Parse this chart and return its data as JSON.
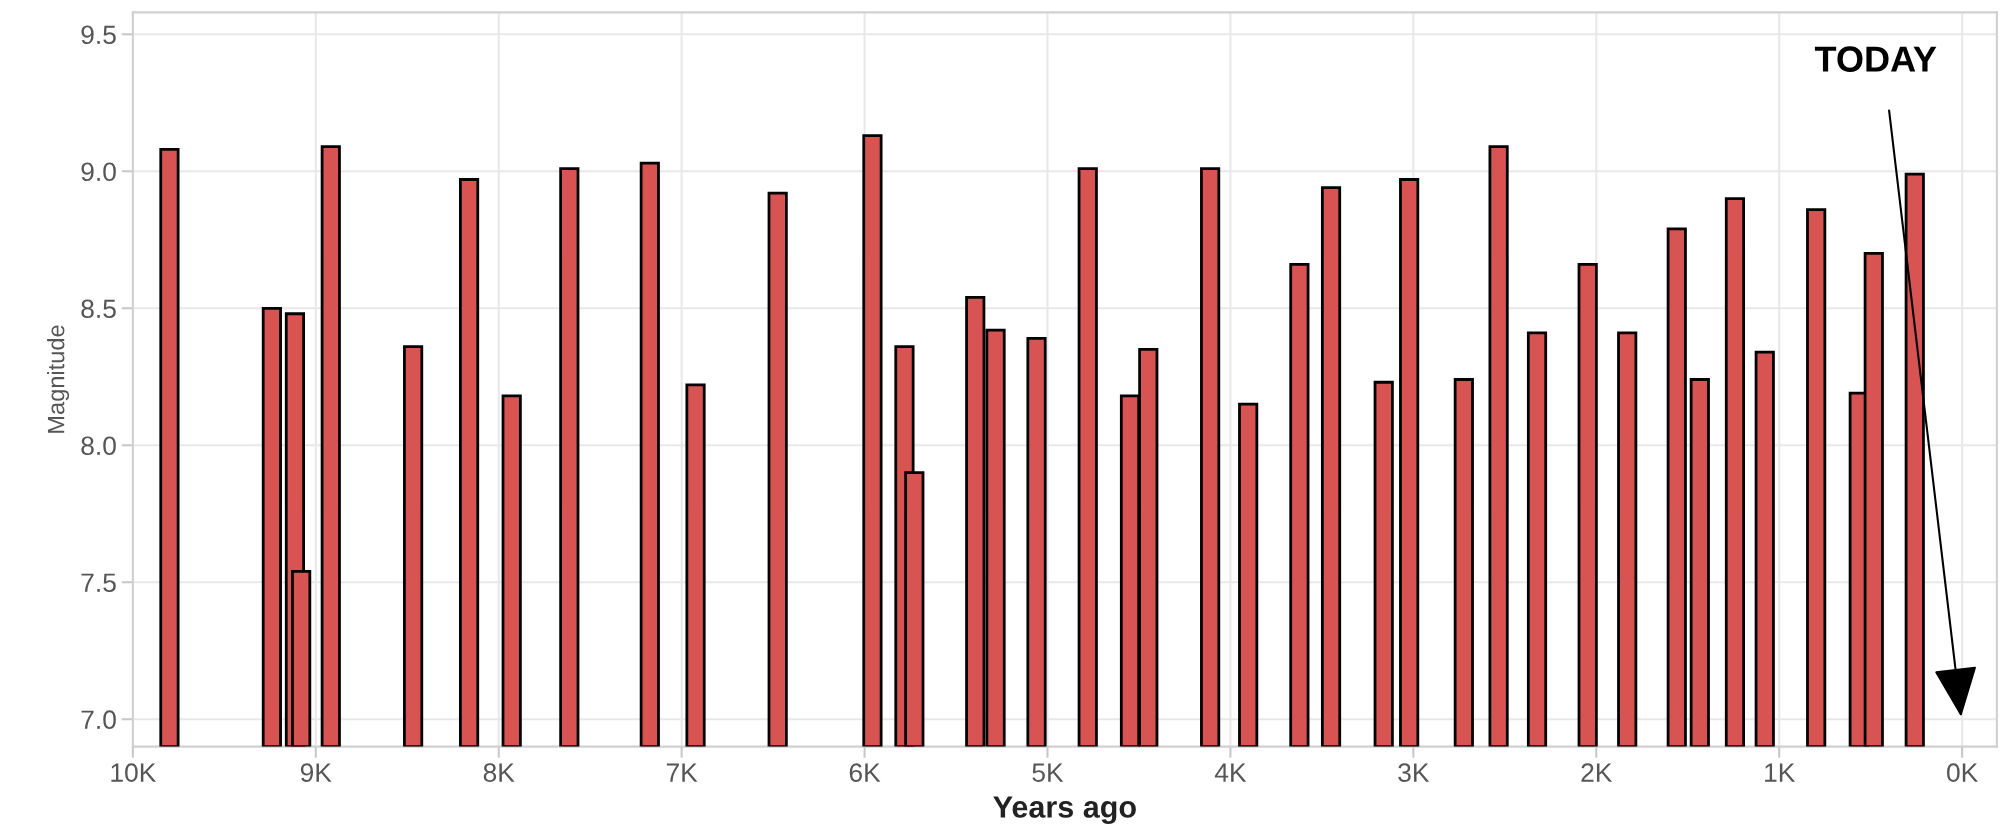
{
  "chart_data": {
    "type": "bar",
    "xlabel": "Years ago",
    "ylabel": "Magnitude",
    "x": [
      9800,
      9240,
      9114,
      9080,
      8918,
      8468,
      8162,
      7929,
      7614,
      7174,
      6924,
      6475,
      5957,
      5782,
      5728,
      5395,
      5284,
      5060,
      4780,
      4549,
      4449,
      4111,
      3903,
      3623,
      3450,
      3162,
      3023,
      2724,
      2534,
      2324,
      2047,
      1831,
      1560,
      1434,
      1242,
      1079,
      798,
      565,
      483,
      259
    ],
    "values": [
      9.08,
      8.5,
      8.48,
      7.54,
      9.09,
      8.36,
      8.97,
      8.18,
      9.01,
      9.03,
      8.22,
      8.92,
      9.13,
      8.36,
      7.9,
      8.54,
      8.42,
      8.39,
      9.01,
      8.18,
      8.35,
      9.01,
      8.15,
      8.66,
      8.94,
      8.23,
      8.97,
      8.24,
      9.09,
      8.41,
      8.66,
      8.41,
      8.79,
      8.24,
      8.9,
      8.34,
      8.86,
      8.19,
      8.7,
      8.99
    ],
    "color": "#d75452",
    "xlim": [
      10000,
      -190
    ],
    "ylim": [
      6.9,
      9.58
    ],
    "xticks": [
      {
        "value": 10000,
        "label": "10K"
      },
      {
        "value": 9000,
        "label": "9K"
      },
      {
        "value": 8000,
        "label": "8K"
      },
      {
        "value": 7000,
        "label": "7K"
      },
      {
        "value": 6000,
        "label": "6K"
      },
      {
        "value": 5000,
        "label": "5K"
      },
      {
        "value": 4000,
        "label": "4K"
      },
      {
        "value": 3000,
        "label": "3K"
      },
      {
        "value": 2000,
        "label": "2K"
      },
      {
        "value": 1000,
        "label": "1K"
      },
      {
        "value": 0,
        "label": "0K"
      }
    ],
    "yticks": [
      {
        "value": 7.0,
        "label": "7.0"
      },
      {
        "value": 7.5,
        "label": "7.5"
      },
      {
        "value": 8.0,
        "label": "8.0"
      },
      {
        "value": 8.5,
        "label": "8.5"
      },
      {
        "value": 9.0,
        "label": "9.0"
      },
      {
        "value": 9.5,
        "label": "9.5"
      }
    ],
    "grid": true,
    "annotations": [
      "TODAY"
    ]
  }
}
